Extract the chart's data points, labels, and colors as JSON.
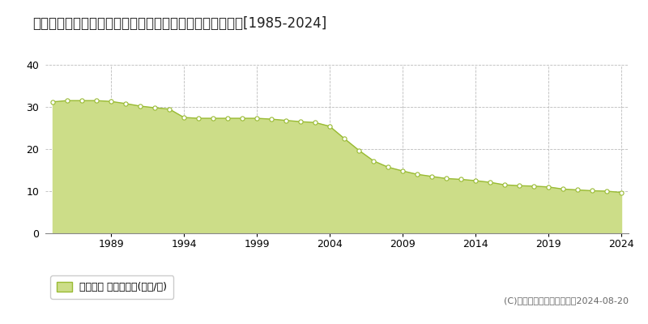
{
  "title": "北海道登別市中央町２丁目１２番８　地価公示　地価推移[1985-2024]",
  "years": [
    1985,
    1986,
    1987,
    1988,
    1989,
    1990,
    1991,
    1992,
    1993,
    1994,
    1995,
    1996,
    1997,
    1998,
    1999,
    2000,
    2001,
    2002,
    2003,
    2004,
    2005,
    2006,
    2007,
    2008,
    2009,
    2010,
    2011,
    2012,
    2013,
    2014,
    2015,
    2016,
    2017,
    2018,
    2019,
    2020,
    2021,
    2022,
    2023,
    2024
  ],
  "values": [
    31.2,
    31.5,
    31.5,
    31.5,
    31.3,
    30.8,
    30.2,
    29.8,
    29.5,
    27.5,
    27.3,
    27.3,
    27.3,
    27.3,
    27.3,
    27.1,
    26.8,
    26.5,
    26.3,
    25.4,
    22.5,
    19.7,
    17.2,
    15.7,
    14.8,
    14.0,
    13.5,
    13.0,
    12.8,
    12.5,
    12.1,
    11.5,
    11.3,
    11.2,
    11.0,
    10.5,
    10.3,
    10.1,
    10.0,
    9.7
  ],
  "line_color": "#99bb33",
  "fill_color": "#ccdd88",
  "marker_facecolor": "#ffffff",
  "marker_edgecolor": "#99bb33",
  "background_color": "#ffffff",
  "grid_color": "#bbbbbb",
  "ylim": [
    0,
    40
  ],
  "yticks": [
    0,
    10,
    20,
    30,
    40
  ],
  "xtick_years": [
    1989,
    1994,
    1999,
    2004,
    2009,
    2014,
    2019,
    2024
  ],
  "legend_label": "地価公示 平均坪単価(万円/坪)",
  "copyright_text": "(C)土地価格ドットコム　　2024-08-20",
  "title_fontsize": 12,
  "legend_fontsize": 9,
  "tick_fontsize": 9,
  "copyright_fontsize": 8
}
